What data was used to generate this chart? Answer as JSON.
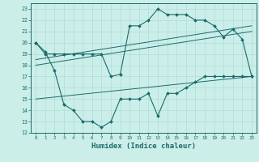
{
  "xlabel": "Humidex (Indice chaleur)",
  "bg_color": "#cceee8",
  "line_color": "#1a6b6b",
  "xlim": [
    -0.5,
    23.5
  ],
  "ylim": [
    12,
    23.5
  ],
  "yticks": [
    12,
    13,
    14,
    15,
    16,
    17,
    18,
    19,
    20,
    21,
    22,
    23
  ],
  "xticks": [
    0,
    1,
    2,
    3,
    4,
    5,
    6,
    7,
    8,
    9,
    10,
    11,
    12,
    13,
    14,
    15,
    16,
    17,
    18,
    19,
    20,
    21,
    22,
    23
  ],
  "curve1_x": [
    0,
    1,
    2,
    3,
    4,
    5,
    6,
    7,
    8,
    9,
    10,
    11,
    12,
    13,
    14,
    15,
    16,
    17,
    18,
    19,
    20,
    21,
    22,
    23
  ],
  "curve1_y": [
    20,
    19,
    19,
    19,
    19,
    19,
    19,
    19,
    17,
    17.2,
    21.5,
    21.5,
    22,
    23,
    22.5,
    22.5,
    22.5,
    22,
    22,
    21.5,
    20.5,
    21.2,
    20.3,
    17
  ],
  "curve2_x": [
    0,
    1,
    2,
    3,
    4,
    5,
    6,
    7,
    8,
    9,
    10,
    11,
    12,
    13,
    14,
    15,
    16,
    17,
    18,
    19,
    20,
    21,
    22,
    23
  ],
  "curve2_y": [
    20,
    19.2,
    17.5,
    14.5,
    14,
    13,
    13,
    12.5,
    13,
    15,
    15,
    15,
    15.5,
    13.5,
    15.5,
    15.5,
    16,
    16.5,
    17,
    17,
    17,
    17,
    17,
    17
  ],
  "line1_x": [
    0,
    23
  ],
  "line1_y": [
    18.5,
    21.5
  ],
  "line2_x": [
    0,
    23
  ],
  "line2_y": [
    18.0,
    21.0
  ],
  "line3_x": [
    0,
    23
  ],
  "line3_y": [
    15.0,
    17.0
  ],
  "grid_color": "#aadddd",
  "xlabel_fontsize": 6.5
}
